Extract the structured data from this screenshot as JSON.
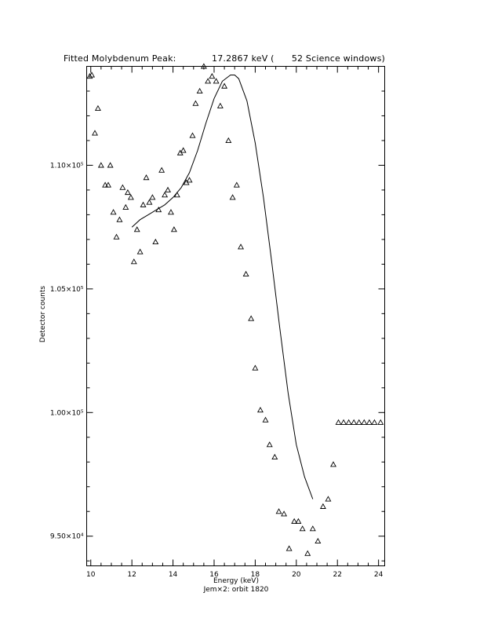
{
  "title_left": "Fitted Molybdenum Peak:",
  "title_right": "17.2867 keV (      52 Science windows)",
  "chart_data": {
    "type": "scatter",
    "xlabel": "Energy (keV)",
    "subtitle": "Jem×2: orbit 1820",
    "ylabel": "Detector counts",
    "xlim": [
      9.8,
      24.3
    ],
    "ylim": [
      93800,
      114000
    ],
    "x_ticks": [
      10,
      12,
      14,
      16,
      18,
      20,
      22,
      24
    ],
    "y_ticks": [
      {
        "value": 95000,
        "label": "9.50×10⁴"
      },
      {
        "value": 100000,
        "label": "1.00×10⁵"
      },
      {
        "value": 105000,
        "label": "1.05×10⁵"
      },
      {
        "value": 110000,
        "label": "1.10×10⁵"
      }
    ],
    "data_series": {
      "marker": "open-triangle",
      "x": [
        9.95,
        10.05,
        10.2,
        10.35,
        10.5,
        10.7,
        10.85,
        10.95,
        11.1,
        11.25,
        11.4,
        11.55,
        11.7,
        11.8,
        11.95,
        12.1,
        12.25,
        12.4,
        12.55,
        12.7,
        12.85,
        13.0,
        13.15,
        13.3,
        13.45,
        13.6,
        13.75,
        13.9,
        14.05,
        14.2,
        14.35,
        14.5,
        14.65,
        14.8,
        14.95,
        15.1,
        15.3,
        15.5,
        15.7,
        15.9,
        16.1,
        16.3,
        16.5,
        16.7,
        16.9,
        17.1,
        17.3,
        17.55,
        17.8,
        18.0,
        18.25,
        18.5,
        18.7,
        18.95,
        19.15,
        19.4,
        19.65,
        19.9,
        20.1,
        20.3,
        20.55,
        20.8,
        21.05,
        21.3,
        21.55,
        21.8,
        22.05,
        22.3,
        22.55,
        22.8,
        23.05,
        23.3,
        23.55,
        23.8,
        24.1
      ],
      "y": [
        113600,
        113650,
        111300,
        112300,
        110000,
        109200,
        109200,
        110000,
        108100,
        107100,
        107800,
        109100,
        108300,
        108900,
        108700,
        106100,
        107400,
        106500,
        108400,
        109500,
        108500,
        108700,
        106900,
        108200,
        109800,
        108800,
        109000,
        108100,
        107400,
        108800,
        110500,
        110600,
        109300,
        109400,
        111200,
        112500,
        113000,
        114000,
        113400,
        113600,
        113400,
        112400,
        113200,
        111000,
        108700,
        109200,
        106700,
        105600,
        103800,
        101800,
        100100,
        99700,
        98700,
        98200,
        96000,
        95900,
        94500,
        95600,
        95600,
        95300,
        94300,
        95300,
        94800,
        96200,
        96500,
        97900,
        99600,
        99600,
        99600,
        99600,
        99600,
        99600,
        99600,
        99600,
        99600
      ]
    },
    "fit_series": {
      "style": "solid-line",
      "x": [
        12.0,
        12.4,
        12.8,
        13.2,
        13.6,
        14.0,
        14.4,
        14.8,
        15.2,
        15.6,
        16.0,
        16.4,
        16.8,
        17.0,
        17.2,
        17.6,
        18.0,
        18.4,
        18.8,
        19.2,
        19.6,
        20.0,
        20.4,
        20.8
      ],
      "y": [
        107500,
        107800,
        108000,
        108200,
        108400,
        108700,
        109100,
        109700,
        110600,
        111700,
        112700,
        113400,
        113650,
        113650,
        113500,
        112600,
        110900,
        108700,
        106100,
        103400,
        100800,
        98700,
        97400,
        96500
      ]
    }
  }
}
